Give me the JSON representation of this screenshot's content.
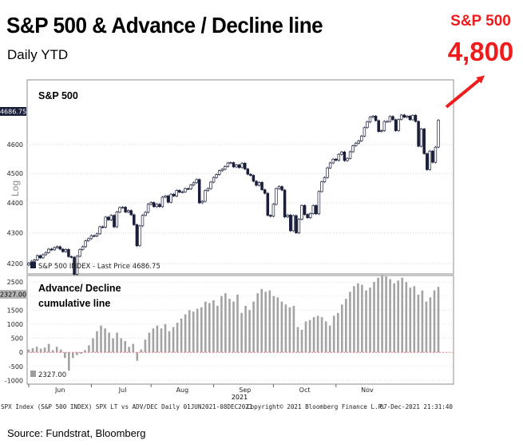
{
  "header": {
    "title": "S&P 500 & Advance / Decline line",
    "subtitle": "Daily YTD"
  },
  "annotation": {
    "label": "S&P 500",
    "value": "4,800",
    "arrow_color": "#ee1c1c"
  },
  "source": "Source: Fundstrat, Bloomberg",
  "chart_data": [
    {
      "type": "candlestick",
      "title": "S&P 500",
      "scale": "Log",
      "ylim": [
        4170,
        4830
      ],
      "yticks": [
        4200,
        4300,
        4400,
        4500,
        4600
      ],
      "last_price_tag": "4686.75",
      "legend": "S&P 500 INDEX - Last Price 4686.75",
      "closes": [
        4202,
        4208,
        4212,
        4226,
        4219,
        4229,
        4236,
        4247,
        4245,
        4252,
        4255,
        4247,
        4239,
        4246,
        4223,
        4221,
        4166,
        4224,
        4246,
        4255,
        4274,
        4281,
        4291,
        4290,
        4297,
        4320,
        4319,
        4352,
        4343,
        4358,
        4320,
        4369,
        4384,
        4385,
        4369,
        4374,
        4360,
        4327,
        4258,
        4323,
        4358,
        4368,
        4395,
        4401,
        4387,
        4395,
        4387,
        4419,
        4423,
        4402,
        4429,
        4423,
        4442,
        4436,
        4437,
        4448,
        4447,
        4460,
        4468,
        4479,
        4400,
        4405,
        4441,
        4448,
        4470,
        4486,
        4496,
        4509,
        4514,
        4524,
        4536,
        4537,
        4522,
        4529,
        4520,
        4535,
        4515,
        4497,
        4493,
        4473,
        4459,
        4469,
        4444,
        4432,
        4358,
        4355,
        4395,
        4448,
        4455,
        4443,
        4353,
        4359,
        4307,
        4357,
        4300,
        4345,
        4391,
        4361,
        4350,
        4364,
        4391,
        4363,
        4438,
        4471,
        4486,
        4519,
        4536,
        4549,
        4545,
        4566,
        4574,
        4544,
        4552,
        4575,
        4596,
        4605,
        4613,
        4630,
        4660,
        4680,
        4697,
        4701,
        4685,
        4646,
        4649,
        4682,
        4682,
        4700,
        4688,
        4649,
        4689,
        4705,
        4697,
        4701,
        4688,
        4704,
        4682,
        4594,
        4655,
        4568,
        4513,
        4577,
        4538,
        4591,
        4686
      ],
      "months": [
        "Jun",
        "Jul",
        "Aug",
        "Sep",
        "Oct",
        "Nov"
      ],
      "year_label": "2021"
    },
    {
      "type": "bar",
      "title": "Advance/ Decline\ncumulative line",
      "title_line1": "Advance/ Decline",
      "title_line2": "cumulative line",
      "ylim": [
        -1100,
        2700
      ],
      "yticks": [
        -1000,
        -500,
        0,
        500,
        1000,
        1500,
        2000,
        2500
      ],
      "ytick_labels": [
        "-1000",
        "-500",
        "0",
        "500",
        "1000",
        "1500",
        "2000",
        "2500"
      ],
      "last_value_tag": "2327.00",
      "legend": "2327.00",
      "values": [
        100,
        150,
        200,
        130,
        170,
        300,
        80,
        200,
        100,
        -200,
        -650,
        -200,
        -100,
        -50,
        80,
        250,
        500,
        750,
        950,
        850,
        700,
        500,
        700,
        500,
        400,
        200,
        300,
        -300,
        100,
        450,
        700,
        850,
        950,
        850,
        1000,
        750,
        900,
        1050,
        1200,
        1350,
        1500,
        1450,
        1550,
        1600,
        1800,
        1750,
        1850,
        1650,
        2000,
        2100,
        1900,
        1800,
        2050,
        1400,
        1650,
        1500,
        1800,
        2100,
        2250,
        2150,
        2200,
        2000,
        1950,
        1800,
        1700,
        1600,
        1650,
        900,
        800,
        1100,
        1150,
        1250,
        1300,
        1250,
        1100,
        950,
        1300,
        1400,
        1700,
        1900,
        2150,
        2350,
        2450,
        2400,
        2200,
        2300,
        2500,
        2650,
        2750,
        2700,
        2600,
        2450,
        2550,
        2650,
        2500,
        2300,
        2350,
        2050,
        2200,
        1800,
        1950,
        2200,
        2327
      ]
    }
  ],
  "footer": {
    "left": "SPX Index (S&P 500 INDEX) SPX LT vs ADV/DEC  Daily 01JUN2021-08DEC2021",
    "middle": "Copyright© 2021 Bloomberg Finance L.P.",
    "right": "07-Dec-2021 21:31:40"
  }
}
